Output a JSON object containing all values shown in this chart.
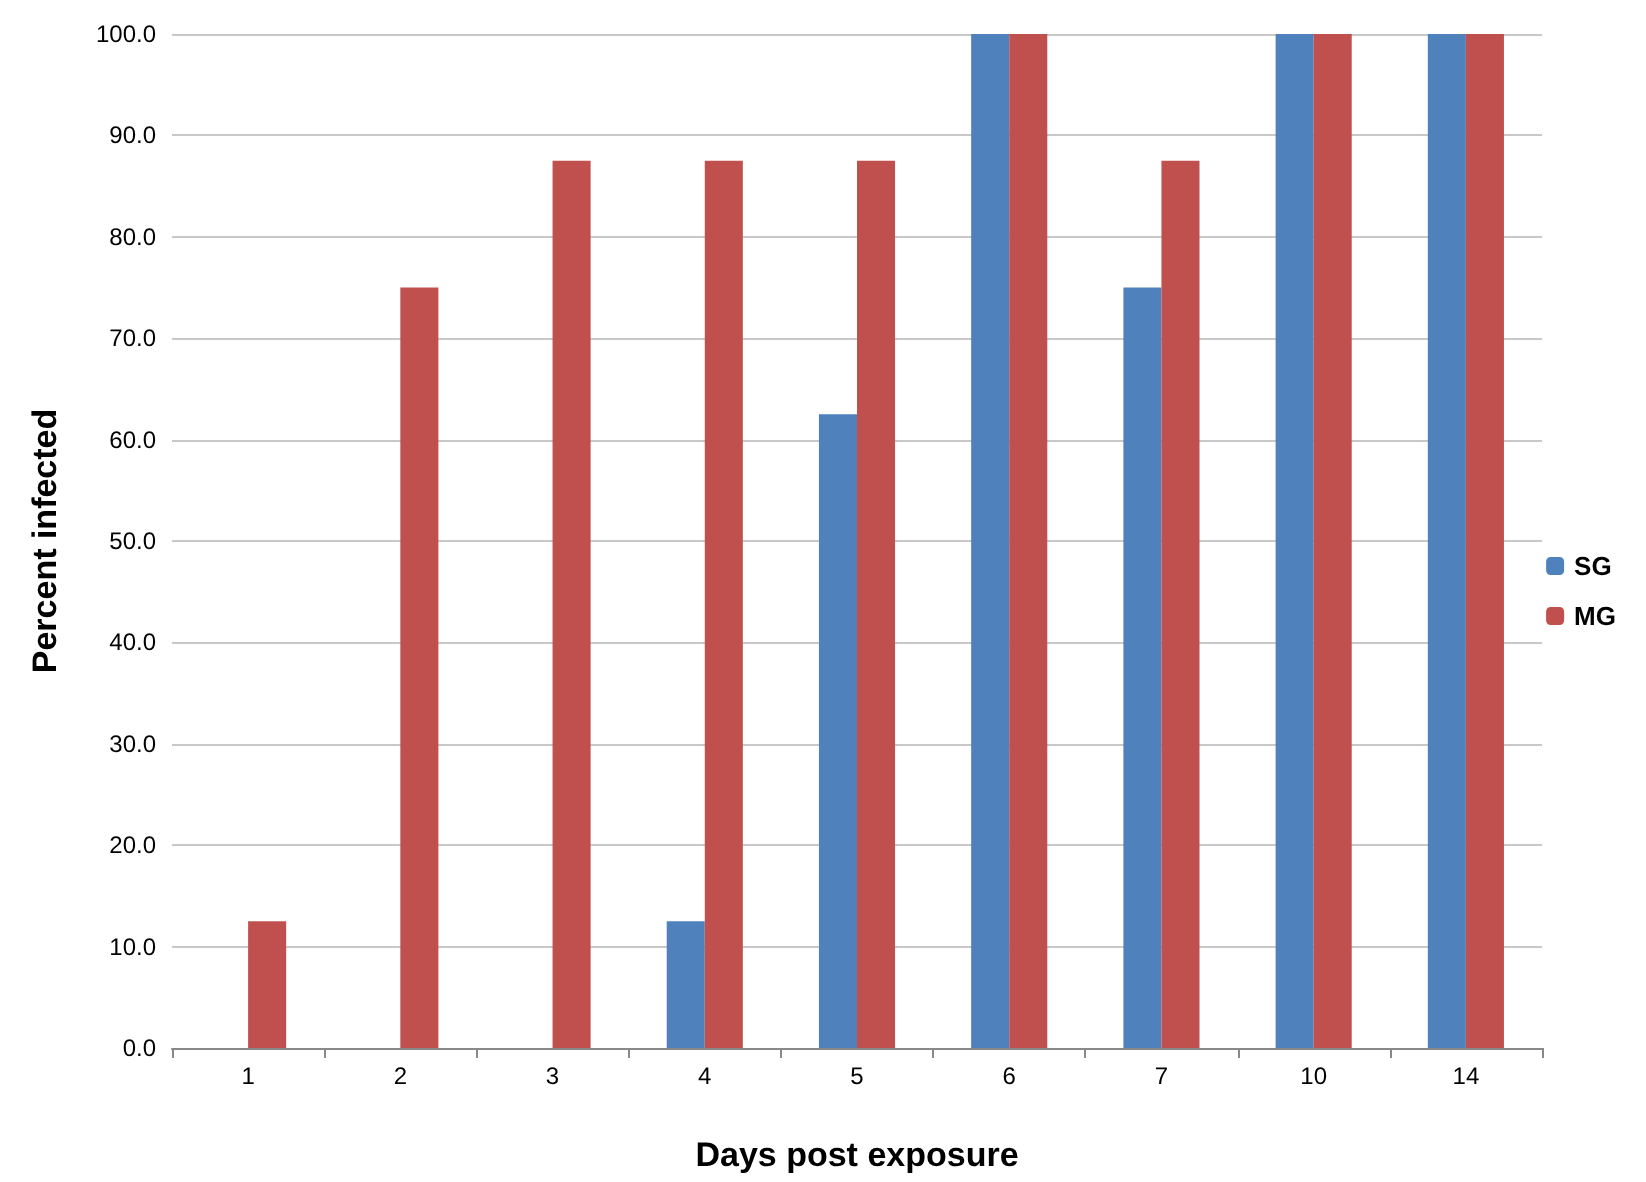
{
  "chart_data": {
    "type": "bar",
    "xlabel": "Days post exposure",
    "ylabel": "Percent infected",
    "categories": [
      "1",
      "2",
      "3",
      "4",
      "5",
      "6",
      "7",
      "10",
      "14"
    ],
    "series": [
      {
        "name": "SG",
        "color": "#4f81bd",
        "values": [
          0,
          0,
          0,
          12.5,
          62.5,
          100,
          75,
          100,
          100
        ]
      },
      {
        "name": "MG",
        "color": "#c0504d",
        "values": [
          12.5,
          75,
          87.5,
          87.5,
          87.5,
          100,
          87.5,
          100,
          100
        ]
      }
    ],
    "ylim": [
      0,
      100
    ],
    "yticks": [
      {
        "value": 0,
        "label": "0.0"
      },
      {
        "value": 10,
        "label": "10.0"
      },
      {
        "value": 20,
        "label": "20.0"
      },
      {
        "value": 30,
        "label": "30.0"
      },
      {
        "value": 40,
        "label": "40.0"
      },
      {
        "value": 50,
        "label": "50.0"
      },
      {
        "value": 60,
        "label": "60.0"
      },
      {
        "value": 70,
        "label": "70.0"
      },
      {
        "value": 80,
        "label": "80.0"
      },
      {
        "value": 90,
        "label": "90.0"
      },
      {
        "value": 100,
        "label": "100.0"
      }
    ],
    "grid": "y",
    "legend": "right"
  }
}
